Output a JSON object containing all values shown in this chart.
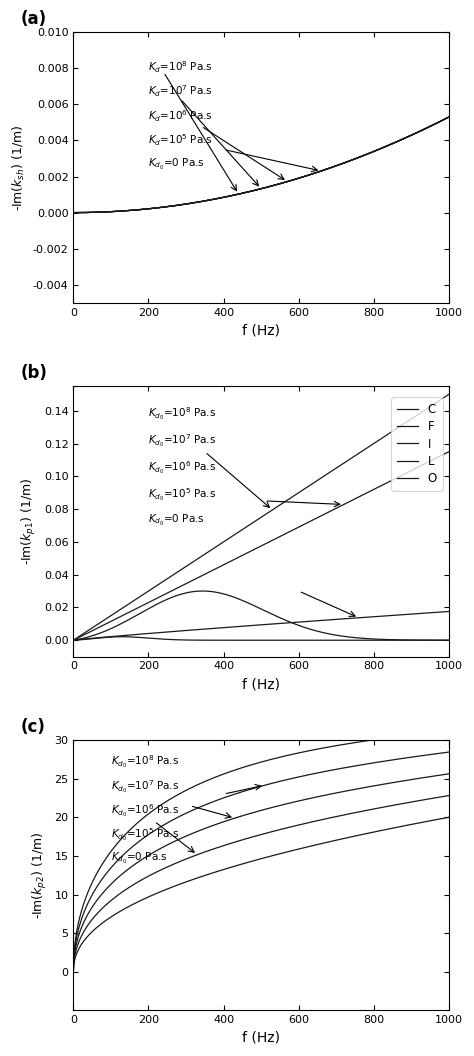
{
  "fig_width": 4.74,
  "fig_height": 10.56,
  "dpi": 100,
  "subplot_labels": [
    "(a)",
    "(b)",
    "(c)"
  ],
  "xlabel": "f (Hz)",
  "ylabels": [
    "-Im($k_{sh}$) (1/m)",
    "-Im($k_{p1}$) (1/m)",
    "-Im($k_{p2}$) (1/m)"
  ],
  "xlim": [
    0,
    1000
  ],
  "ylim_a": [
    -0.005,
    0.01
  ],
  "ylim_b": [
    -0.01,
    0.155
  ],
  "ylim_c": [
    -5,
    30
  ],
  "yticks_a": [
    -0.004,
    -0.002,
    0.0,
    0.002,
    0.004,
    0.006,
    0.008,
    0.01
  ],
  "yticks_b": [
    0.0,
    0.02,
    0.04,
    0.06,
    0.08,
    0.1,
    0.12,
    0.14
  ],
  "yticks_c": [
    0,
    5,
    10,
    15,
    20,
    25,
    30
  ],
  "text_labels": [
    "$K_d$=10$^8$ Pa.s",
    "$K_d$=10$^7$ Pa.s",
    "$K_d$=10$^6$ Pa.s",
    "$K_d$=10$^5$ Pa.s",
    "$K_{d_0}$=0 Pa.s"
  ],
  "text_labels_b": [
    "$K_{d_0}$=10$^8$ Pa.s",
    "$K_{d_0}$=10$^7$ Pa.s",
    "$K_{d_0}$=10$^6$ Pa.s",
    "$K_{d_0}$=10$^5$ Pa.s",
    "$K_{d_0}$=0 Pa.s"
  ],
  "legend_labels_b_right": [
    "C",
    "F",
    "I",
    "L",
    "O"
  ],
  "line_color": "#1a1a1a",
  "bg_color": "#ffffff"
}
